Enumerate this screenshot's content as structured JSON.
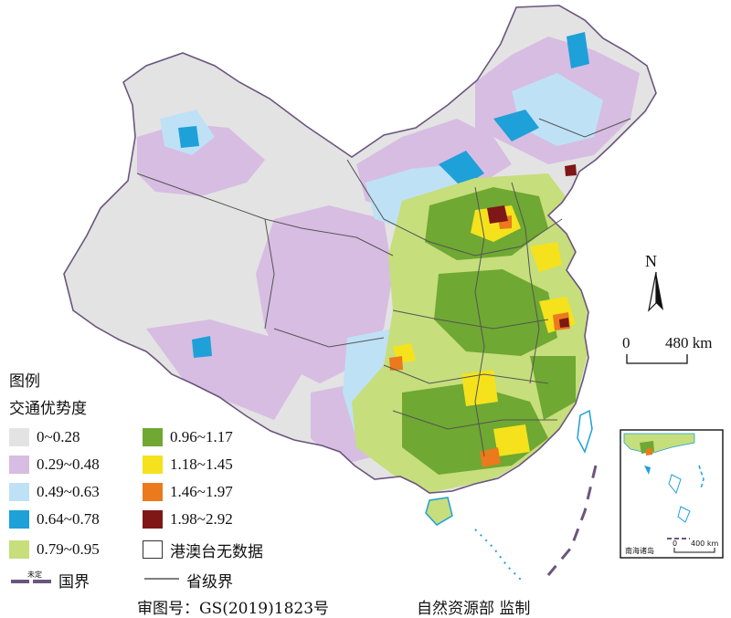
{
  "legend": {
    "title": "图例",
    "subtitle": "交通优势度",
    "items": [
      {
        "label": "0~0.28",
        "color": "#e3e3e3"
      },
      {
        "label": "0.29~0.48",
        "color": "#d7bde2"
      },
      {
        "label": "0.49~0.63",
        "color": "#bfe1f6"
      },
      {
        "label": "0.64~0.78",
        "color": "#1ea0d8"
      },
      {
        "label": "0.79~0.95",
        "color": "#c6de7c"
      },
      {
        "label": "0.96~1.17",
        "color": "#6fa832"
      },
      {
        "label": "1.18~1.45",
        "color": "#f5e21d"
      },
      {
        "label": "1.46~1.97",
        "color": "#ea7a1c"
      },
      {
        "label": "1.98~2.92",
        "color": "#7e1716"
      },
      {
        "label": "港澳台无数据",
        "color": "#ffffff"
      }
    ],
    "national_border": "国界",
    "national_border_marker": "未定",
    "provincial_border": "省级界"
  },
  "north_arrow": {
    "label": "N"
  },
  "scale_bar": {
    "zero": "0",
    "distance": "480 km"
  },
  "inset": {
    "title": "南海诸岛",
    "scale_zero": "0",
    "scale_distance": "400 km"
  },
  "footer": {
    "map_review_number": "审图号：GS(2019)1823号",
    "supervisor": "自然资源部 监制"
  }
}
